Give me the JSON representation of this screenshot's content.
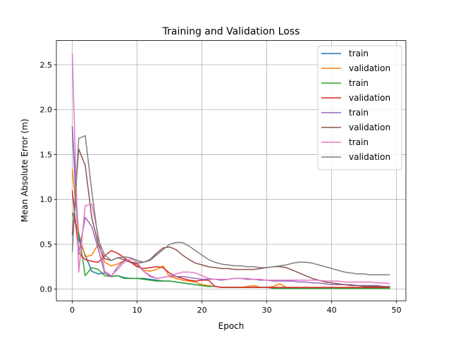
{
  "chart_data": {
    "type": "line",
    "title": "Training and Validation Loss",
    "xlabel": "Epoch",
    "ylabel": "Mean Absolute Error  (m)",
    "xlim": [
      -2.45,
      51.45
    ],
    "ylim": [
      -0.13,
      2.77
    ],
    "xticks": [
      0,
      10,
      20,
      30,
      40,
      50
    ],
    "yticks": [
      0.0,
      0.5,
      1.0,
      1.5,
      2.0,
      2.5
    ],
    "xtick_labels": [
      "0",
      "10",
      "20",
      "30",
      "40",
      "50"
    ],
    "ytick_labels": [
      "0.0",
      "0.5",
      "1.0",
      "1.5",
      "2.0",
      "2.5"
    ],
    "grid": true,
    "legend_position": "top-right",
    "series": [
      {
        "name": "train",
        "color": "#1f77b4",
        "y": [
          1.81,
          0.55,
          0.38,
          0.2,
          0.17,
          0.18,
          0.14,
          0.15,
          0.13,
          0.12,
          0.12,
          0.12,
          0.11,
          0.1,
          0.09,
          0.09,
          0.08,
          0.07,
          0.06,
          0.05,
          0.04,
          0.03,
          0.03,
          0.02,
          0.02,
          0.02,
          0.02,
          0.02,
          0.02,
          0.02,
          0.02,
          0.01,
          0.01,
          0.01,
          0.01,
          0.01,
          0.01,
          0.01,
          0.01,
          0.01,
          0.01,
          0.01,
          0.01,
          0.01,
          0.01,
          0.01,
          0.01,
          0.01,
          0.01,
          0.01
        ]
      },
      {
        "name": "validation",
        "color": "#ff7f0e",
        "y": [
          1.34,
          0.62,
          0.36,
          0.38,
          0.5,
          0.3,
          0.26,
          0.28,
          0.32,
          0.31,
          0.26,
          0.21,
          0.2,
          0.22,
          0.26,
          0.14,
          0.12,
          0.1,
          0.09,
          0.08,
          0.05,
          0.04,
          0.03,
          0.02,
          0.02,
          0.02,
          0.02,
          0.03,
          0.04,
          0.02,
          0.02,
          0.03,
          0.06,
          0.02,
          0.01,
          0.02,
          0.01,
          0.01,
          0.01,
          0.01,
          0.02,
          0.01,
          0.01,
          0.01,
          0.01,
          0.01,
          0.01,
          0.01,
          0.01,
          0.01
        ]
      },
      {
        "name": "train",
        "color": "#2ca02c",
        "y": [
          0.85,
          0.62,
          0.15,
          0.24,
          0.22,
          0.15,
          0.14,
          0.15,
          0.12,
          0.12,
          0.12,
          0.11,
          0.1,
          0.09,
          0.09,
          0.09,
          0.08,
          0.07,
          0.06,
          0.05,
          0.04,
          0.03,
          0.03,
          0.02,
          0.02,
          0.02,
          0.02,
          0.02,
          0.02,
          0.02,
          0.02,
          0.01,
          0.01,
          0.01,
          0.01,
          0.01,
          0.01,
          0.01,
          0.01,
          0.01,
          0.01,
          0.01,
          0.01,
          0.01,
          0.01,
          0.01,
          0.01,
          0.01,
          0.01,
          0.01
        ]
      },
      {
        "name": "validation",
        "color": "#d62728",
        "y": [
          1.1,
          0.4,
          0.33,
          0.31,
          0.3,
          0.37,
          0.43,
          0.4,
          0.35,
          0.3,
          0.25,
          0.23,
          0.24,
          0.25,
          0.24,
          0.18,
          0.14,
          0.12,
          0.1,
          0.09,
          0.1,
          0.1,
          0.03,
          0.02,
          0.02,
          0.02,
          0.02,
          0.02,
          0.02,
          0.02,
          0.02,
          0.02,
          0.02,
          0.02,
          0.02,
          0.02,
          0.02,
          0.02,
          0.02,
          0.02,
          0.02,
          0.02,
          0.02,
          0.02,
          0.02,
          0.02,
          0.02,
          0.02,
          0.02,
          0.02
        ]
      },
      {
        "name": "train",
        "color": "#9467bd",
        "y": [
          1.8,
          0.4,
          0.8,
          0.7,
          0.45,
          0.18,
          0.14,
          0.25,
          0.32,
          0.3,
          0.28,
          0.2,
          0.15,
          0.12,
          0.13,
          0.15,
          0.14,
          0.14,
          0.13,
          0.12,
          0.11,
          0.11,
          0.11,
          0.1,
          0.11,
          0.12,
          0.12,
          0.11,
          0.11,
          0.1,
          0.1,
          0.09,
          0.09,
          0.09,
          0.09,
          0.08,
          0.08,
          0.07,
          0.07,
          0.06,
          0.05,
          0.05,
          0.05,
          0.05,
          0.04,
          0.04,
          0.04,
          0.04,
          0.03,
          0.03
        ]
      },
      {
        "name": "validation",
        "color": "#8c564b",
        "y": [
          0.6,
          1.56,
          1.38,
          0.8,
          0.5,
          0.34,
          0.32,
          0.35,
          0.33,
          0.3,
          0.29,
          0.3,
          0.33,
          0.4,
          0.46,
          0.47,
          0.44,
          0.38,
          0.33,
          0.29,
          0.27,
          0.25,
          0.24,
          0.23,
          0.23,
          0.22,
          0.22,
          0.22,
          0.22,
          0.23,
          0.24,
          0.25,
          0.25,
          0.24,
          0.21,
          0.18,
          0.15,
          0.12,
          0.1,
          0.08,
          0.07,
          0.06,
          0.05,
          0.04,
          0.04,
          0.03,
          0.03,
          0.03,
          0.03,
          0.02
        ]
      },
      {
        "name": "train",
        "color": "#e377c2",
        "y": [
          2.63,
          0.19,
          0.93,
          0.95,
          0.6,
          0.2,
          0.15,
          0.22,
          0.3,
          0.34,
          0.3,
          0.2,
          0.14,
          0.12,
          0.13,
          0.15,
          0.17,
          0.19,
          0.19,
          0.18,
          0.15,
          0.12,
          0.11,
          0.11,
          0.11,
          0.12,
          0.12,
          0.12,
          0.11,
          0.11,
          0.1,
          0.1,
          0.1,
          0.1,
          0.1,
          0.1,
          0.1,
          0.1,
          0.1,
          0.09,
          0.09,
          0.09,
          0.08,
          0.08,
          0.08,
          0.08,
          0.08,
          0.07,
          0.07,
          0.06
        ]
      },
      {
        "name": "validation",
        "color": "#7f7f7f",
        "y": [
          0.41,
          1.68,
          1.71,
          1.1,
          0.55,
          0.38,
          0.32,
          0.35,
          0.36,
          0.35,
          0.32,
          0.3,
          0.32,
          0.38,
          0.44,
          0.5,
          0.52,
          0.52,
          0.48,
          0.43,
          0.38,
          0.33,
          0.3,
          0.28,
          0.27,
          0.26,
          0.26,
          0.25,
          0.25,
          0.24,
          0.24,
          0.25,
          0.26,
          0.27,
          0.29,
          0.3,
          0.3,
          0.29,
          0.27,
          0.25,
          0.23,
          0.21,
          0.19,
          0.18,
          0.17,
          0.17,
          0.16,
          0.16,
          0.16,
          0.16
        ]
      }
    ]
  }
}
